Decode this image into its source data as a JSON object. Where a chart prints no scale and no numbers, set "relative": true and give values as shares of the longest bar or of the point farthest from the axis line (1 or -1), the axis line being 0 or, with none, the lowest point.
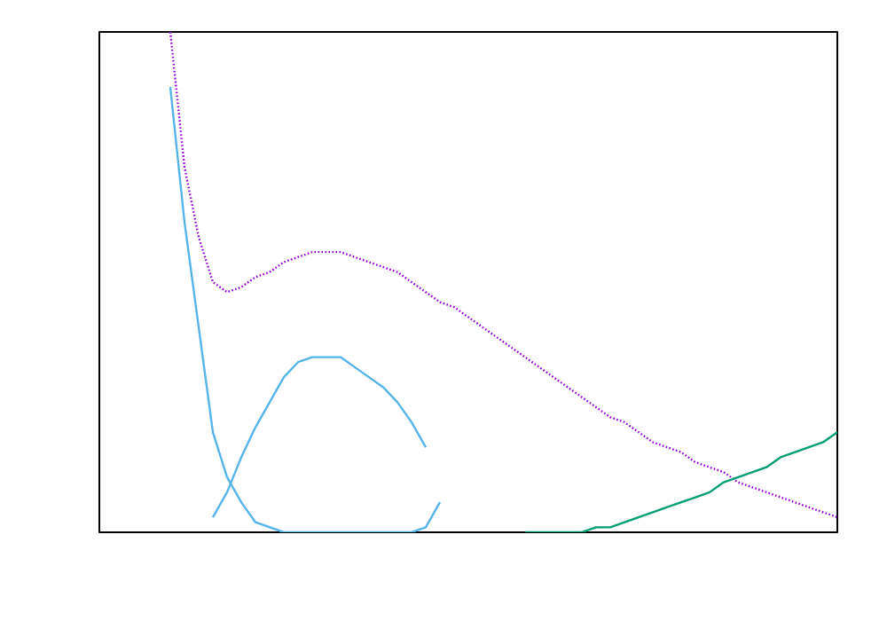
{
  "chart_data": {
    "type": "line",
    "relative": true,
    "marker": "none",
    "categories": [
      null,
      null,
      null,
      null,
      null,
      null,
      null,
      null,
      null,
      null,
      null,
      null,
      null,
      null,
      null,
      null,
      null,
      null,
      null,
      null,
      null,
      null,
      null,
      null,
      null,
      null,
      null,
      null,
      null,
      null,
      null,
      null,
      null,
      null,
      null,
      null,
      null,
      null,
      null,
      null,
      null,
      null,
      null,
      null,
      null,
      null,
      null,
      null,
      null,
      null,
      null,
      null,
      null
    ],
    "series": [
      {
        "color": "#56b4e9",
        "line_style": "solid",
        "values": [
          null,
          null,
          null,
          null,
          null,
          0.89,
          0.62,
          0.41,
          0.2,
          0.11,
          0.06,
          0.02,
          0.01,
          0,
          0,
          0,
          0,
          0,
          0,
          0,
          0,
          0,
          0,
          0.01,
          0.06,
          null,
          null,
          null,
          null,
          null,
          null,
          null,
          null,
          null,
          null,
          null,
          null,
          null,
          null,
          null,
          null,
          null,
          null,
          null,
          null,
          null,
          null,
          null,
          null,
          null,
          null,
          null,
          null
        ]
      },
      {
        "color": "#56b4e9",
        "line_style": "solid",
        "values": [
          null,
          null,
          null,
          null,
          null,
          null,
          null,
          null,
          0.03,
          0.08,
          0.15,
          0.21,
          0.26,
          0.31,
          0.34,
          0.35,
          0.35,
          0.35,
          0.33,
          0.31,
          0.29,
          0.26,
          0.22,
          0.17,
          null,
          null,
          null,
          null,
          null,
          null,
          null,
          null,
          null,
          null,
          null,
          null,
          null,
          null,
          null,
          null,
          null,
          null,
          null,
          null,
          null,
          null,
          null,
          null,
          null,
          null,
          null,
          null,
          null
        ]
      },
      {
        "color": "#9400d3",
        "line_style": "dotted",
        "values": [
          null,
          null,
          null,
          null,
          null,
          1,
          0.73,
          0.59,
          0.5,
          0.48,
          0.49,
          0.51,
          0.52,
          0.54,
          0.55,
          0.56,
          0.56,
          0.56,
          0.55,
          0.54,
          0.53,
          0.52,
          0.5,
          0.48,
          0.46,
          0.45,
          0.43,
          0.41,
          0.39,
          0.37,
          0.35,
          0.33,
          0.31,
          0.29,
          0.27,
          0.25,
          0.23,
          0.22,
          0.2,
          0.18,
          0.17,
          0.16,
          0.14,
          0.13,
          0.12,
          0.1,
          0.09,
          0.08,
          0.07,
          0.06,
          0.05,
          0.04,
          0.03
        ]
      },
      {
        "color": "#009e73",
        "line_style": "solid",
        "values": [
          null,
          null,
          null,
          null,
          null,
          null,
          null,
          null,
          null,
          null,
          null,
          null,
          null,
          null,
          null,
          null,
          null,
          null,
          null,
          null,
          null,
          null,
          null,
          null,
          null,
          null,
          null,
          null,
          null,
          null,
          0,
          0,
          0,
          0,
          0,
          0.01,
          0.01,
          0.02,
          0.03,
          0.04,
          0.05,
          0.06,
          0.07,
          0.08,
          0.1,
          0.11,
          0.12,
          0.13,
          0.15,
          0.16,
          0.17,
          0.18,
          0.2
        ]
      }
    ]
  }
}
